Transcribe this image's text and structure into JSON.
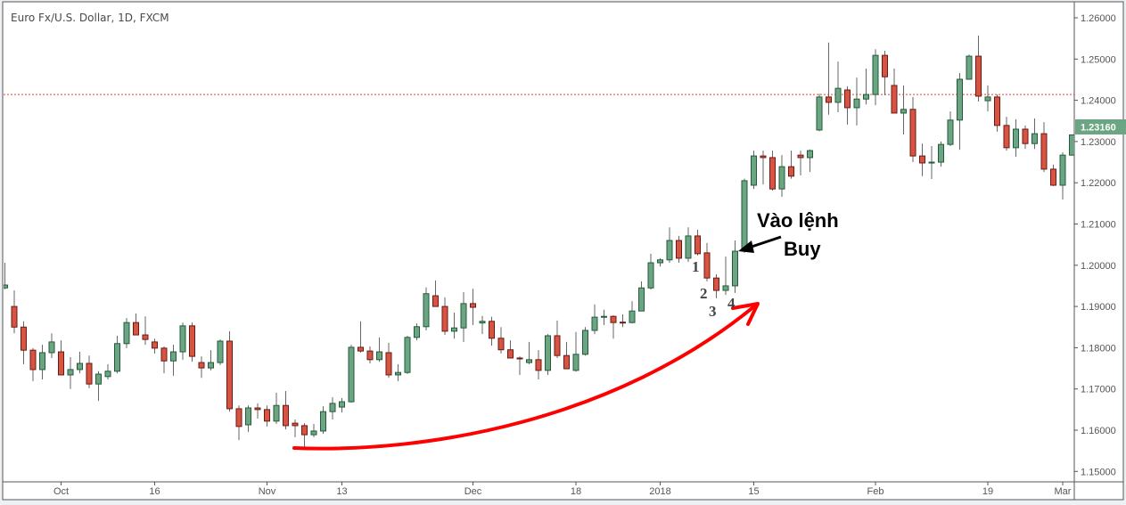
{
  "chart_data": {
    "type": "candlestick",
    "title": "Euro Fx/U.S. Dollar, 1D, FXCM",
    "ylim": [
      1.145,
      1.263
    ],
    "yticks": [
      "1.15000",
      "1.16000",
      "1.17000",
      "1.18000",
      "1.19000",
      "1.20000",
      "1.21000",
      "1.22000",
      "1.23000",
      "1.24000",
      "1.25000",
      "1.26000"
    ],
    "xticks": [
      {
        "label": "Oct",
        "index": 6
      },
      {
        "label": "16",
        "index": 16
      },
      {
        "label": "Nov",
        "index": 28
      },
      {
        "label": "13",
        "index": 36
      },
      {
        "label": "Dec",
        "index": 50
      },
      {
        "label": "18",
        "index": 61
      },
      {
        "label": "2018",
        "index": 70
      },
      {
        "label": "15",
        "index": 80
      },
      {
        "label": "Feb",
        "index": 93
      },
      {
        "label": "19",
        "index": 105
      },
      {
        "label": "Mar",
        "index": 113
      }
    ],
    "horizontal_line": 1.2414,
    "last_price": "1.23160",
    "last_price_value": 1.2316,
    "colors": {
      "up": "#6ba583",
      "up_border": "#225b38",
      "down": "#d75442",
      "down_border": "#6b1a13",
      "wick": "#666666",
      "hline": "#e8412c",
      "arrow": "#ff0000"
    },
    "ohlc_columns": [
      "open",
      "high",
      "low",
      "close"
    ],
    "candles": [
      [
        1.1945,
        1.2006,
        1.1942,
        1.1952
      ],
      [
        1.19,
        1.1939,
        1.1835,
        1.185
      ],
      [
        1.185,
        1.1864,
        1.176,
        1.1794
      ],
      [
        1.1794,
        1.1799,
        1.1719,
        1.1747
      ],
      [
        1.1747,
        1.1807,
        1.1723,
        1.1788
      ],
      [
        1.1788,
        1.1835,
        1.1775,
        1.1814
      ],
      [
        1.179,
        1.1818,
        1.1734,
        1.1734
      ],
      [
        1.1734,
        1.1777,
        1.17,
        1.1747
      ],
      [
        1.1747,
        1.179,
        1.1738,
        1.1762
      ],
      [
        1.1762,
        1.1781,
        1.1702,
        1.1712
      ],
      [
        1.1712,
        1.1743,
        1.1671,
        1.1736
      ],
      [
        1.173,
        1.176,
        1.1723,
        1.1743
      ],
      [
        1.1743,
        1.1829,
        1.1738,
        1.181
      ],
      [
        1.181,
        1.1872,
        1.1799,
        1.1861
      ],
      [
        1.1861,
        1.1883,
        1.1831,
        1.1831
      ],
      [
        1.1831,
        1.1876,
        1.1807,
        1.182
      ],
      [
        1.1814,
        1.1822,
        1.1786,
        1.1799
      ],
      [
        1.1799,
        1.1803,
        1.1738,
        1.1768
      ],
      [
        1.1768,
        1.1807,
        1.1732,
        1.179
      ],
      [
        1.179,
        1.1861,
        1.1771,
        1.1853
      ],
      [
        1.1853,
        1.1861,
        1.1766,
        1.1779
      ],
      [
        1.1764,
        1.1779,
        1.1727,
        1.1751
      ],
      [
        1.1751,
        1.1794,
        1.1745,
        1.1764
      ],
      [
        1.1764,
        1.182,
        1.1758,
        1.1816
      ],
      [
        1.1816,
        1.184,
        1.1645,
        1.1652
      ],
      [
        1.1652,
        1.166,
        1.1576,
        1.1609
      ],
      [
        1.1613,
        1.166,
        1.1596,
        1.1654
      ],
      [
        1.1654,
        1.1665,
        1.1628,
        1.165
      ],
      [
        1.165,
        1.166,
        1.1609,
        1.1622
      ],
      [
        1.1622,
        1.1691,
        1.1615,
        1.166
      ],
      [
        1.166,
        1.1695,
        1.1602,
        1.1611
      ],
      [
        1.1617,
        1.1626,
        1.1583,
        1.1611
      ],
      [
        1.1611,
        1.1617,
        1.1557,
        1.1589
      ],
      [
        1.1589,
        1.1615,
        1.1583,
        1.1598
      ],
      [
        1.1598,
        1.1658,
        1.1591,
        1.1645
      ],
      [
        1.1645,
        1.168,
        1.1626,
        1.1665
      ],
      [
        1.1656,
        1.1678,
        1.1643,
        1.1669
      ],
      [
        1.1669,
        1.1807,
        1.1667,
        1.1801
      ],
      [
        1.1801,
        1.1864,
        1.1788,
        1.1792
      ],
      [
        1.1792,
        1.1803,
        1.1762,
        1.1771
      ],
      [
        1.1771,
        1.1825,
        1.1766,
        1.179
      ],
      [
        1.1788,
        1.1812,
        1.1727,
        1.1734
      ],
      [
        1.1734,
        1.176,
        1.1719,
        1.174
      ],
      [
        1.174,
        1.1829,
        1.1736,
        1.1825
      ],
      [
        1.1825,
        1.1859,
        1.1818,
        1.1851
      ],
      [
        1.1851,
        1.1946,
        1.1842,
        1.1931
      ],
      [
        1.1926,
        1.1963,
        1.19,
        1.19
      ],
      [
        1.19,
        1.1922,
        1.1831,
        1.184
      ],
      [
        1.184,
        1.1885,
        1.1822,
        1.1848
      ],
      [
        1.1848,
        1.1935,
        1.1814,
        1.1907
      ],
      [
        1.1907,
        1.1943,
        1.1855,
        1.1898
      ],
      [
        1.186,
        1.1877,
        1.1833,
        1.1864
      ],
      [
        1.1864,
        1.1875,
        1.1805,
        1.1823
      ],
      [
        1.1823,
        1.185,
        1.1786,
        1.1795
      ],
      [
        1.1795,
        1.1818,
        1.1775,
        1.1775
      ],
      [
        1.1775,
        1.1779,
        1.1734,
        1.1773
      ],
      [
        1.1764,
        1.1814,
        1.176,
        1.1771
      ],
      [
        1.1771,
        1.1794,
        1.1723,
        1.1745
      ],
      [
        1.1745,
        1.1833,
        1.1734,
        1.1829
      ],
      [
        1.1829,
        1.1866,
        1.1775,
        1.1781
      ],
      [
        1.1781,
        1.1814,
        1.1749,
        1.1749
      ],
      [
        1.1745,
        1.1838,
        1.1742,
        1.1784
      ],
      [
        1.1784,
        1.185,
        1.1781,
        1.1842
      ],
      [
        1.1842,
        1.1905,
        1.1833,
        1.1874
      ],
      [
        1.1874,
        1.1892,
        1.1855,
        1.1876
      ],
      [
        1.1876,
        1.1879,
        1.1822,
        1.1861
      ],
      [
        1.1862,
        1.1881,
        1.185,
        1.186
      ],
      [
        1.1861,
        1.1913,
        1.1859,
        1.1889
      ],
      [
        1.1889,
        1.1961,
        1.1889,
        1.1945
      ],
      [
        1.1945,
        1.2028,
        1.1941,
        1.2006
      ],
      [
        1.2006,
        1.2017,
        1.1997,
        1.2013
      ],
      [
        1.2013,
        1.2092,
        1.2006,
        1.206
      ],
      [
        1.206,
        1.2071,
        1.2006,
        1.2017
      ],
      [
        1.2017,
        1.2092,
        1.2008,
        1.2071
      ],
      [
        1.2071,
        1.2086,
        1.2024,
        1.2028
      ],
      [
        1.203,
        1.2054,
        1.1961,
        1.1969
      ],
      [
        1.1969,
        1.1978,
        1.192,
        1.1939
      ],
      [
        1.1939,
        1.2021,
        1.1928,
        1.195
      ],
      [
        1.195,
        1.206,
        1.1933,
        1.2034
      ],
      [
        1.2034,
        1.221,
        1.203,
        1.2205
      ],
      [
        1.2194,
        1.2278,
        1.2185,
        1.2265
      ],
      [
        1.2265,
        1.2278,
        1.2196,
        1.2261
      ],
      [
        1.2261,
        1.2278,
        1.2181,
        1.2185
      ],
      [
        1.2185,
        1.2267,
        1.2166,
        1.2239
      ],
      [
        1.2239,
        1.2278,
        1.221,
        1.2216
      ],
      [
        1.2267,
        1.2278,
        1.2218,
        1.2261
      ],
      [
        1.2261,
        1.2281,
        1.2226,
        1.2278
      ],
      [
        1.2328,
        1.2416,
        1.2325,
        1.2408
      ],
      [
        1.2408,
        1.254,
        1.2365,
        1.2395
      ],
      [
        1.2395,
        1.2494,
        1.2371,
        1.2429
      ],
      [
        1.2425,
        1.2434,
        1.2341,
        1.2382
      ],
      [
        1.2382,
        1.2455,
        1.2339,
        1.2403
      ],
      [
        1.2403,
        1.2477,
        1.239,
        1.2414
      ],
      [
        1.2414,
        1.2524,
        1.2388,
        1.2509
      ],
      [
        1.2509,
        1.252,
        1.2412,
        1.2457
      ],
      [
        1.2436,
        1.2477,
        1.2369,
        1.2369
      ],
      [
        1.2369,
        1.2436,
        1.2317,
        1.2378
      ],
      [
        1.2378,
        1.2408,
        1.225,
        1.2265
      ],
      [
        1.2265,
        1.2295,
        1.2216,
        1.2248
      ],
      [
        1.2248,
        1.2289,
        1.2209,
        1.225
      ],
      [
        1.225,
        1.23,
        1.2239,
        1.2293
      ],
      [
        1.2293,
        1.2373,
        1.2289,
        1.2352
      ],
      [
        1.2352,
        1.2466,
        1.228,
        1.2451
      ],
      [
        1.2451,
        1.2511,
        1.245,
        1.2507
      ],
      [
        1.2507,
        1.2557,
        1.2397,
        1.241
      ],
      [
        1.2399,
        1.2436,
        1.2373,
        1.2408
      ],
      [
        1.2408,
        1.2414,
        1.2324,
        1.2339
      ],
      [
        1.2339,
        1.236,
        1.2278,
        1.2285
      ],
      [
        1.2285,
        1.2354,
        1.2263,
        1.233
      ],
      [
        1.233,
        1.2339,
        1.2282,
        1.2295
      ],
      [
        1.2295,
        1.2356,
        1.2282,
        1.2319
      ],
      [
        1.2319,
        1.2347,
        1.2226,
        1.2233
      ],
      [
        1.2233,
        1.2244,
        1.2192,
        1.2194
      ],
      [
        1.2194,
        1.2274,
        1.2159,
        1.2267
      ],
      [
        1.2267,
        1.2316,
        1.2267,
        1.2316
      ]
    ],
    "annotations": {
      "entry_line1": "Vào lệnh",
      "entry_line2": "Buy",
      "counts": [
        {
          "label": "1",
          "index": 74
        },
        {
          "label": "2",
          "index": 75
        },
        {
          "label": "3",
          "index": 76
        },
        {
          "label": "4",
          "index": 78
        }
      ]
    }
  }
}
